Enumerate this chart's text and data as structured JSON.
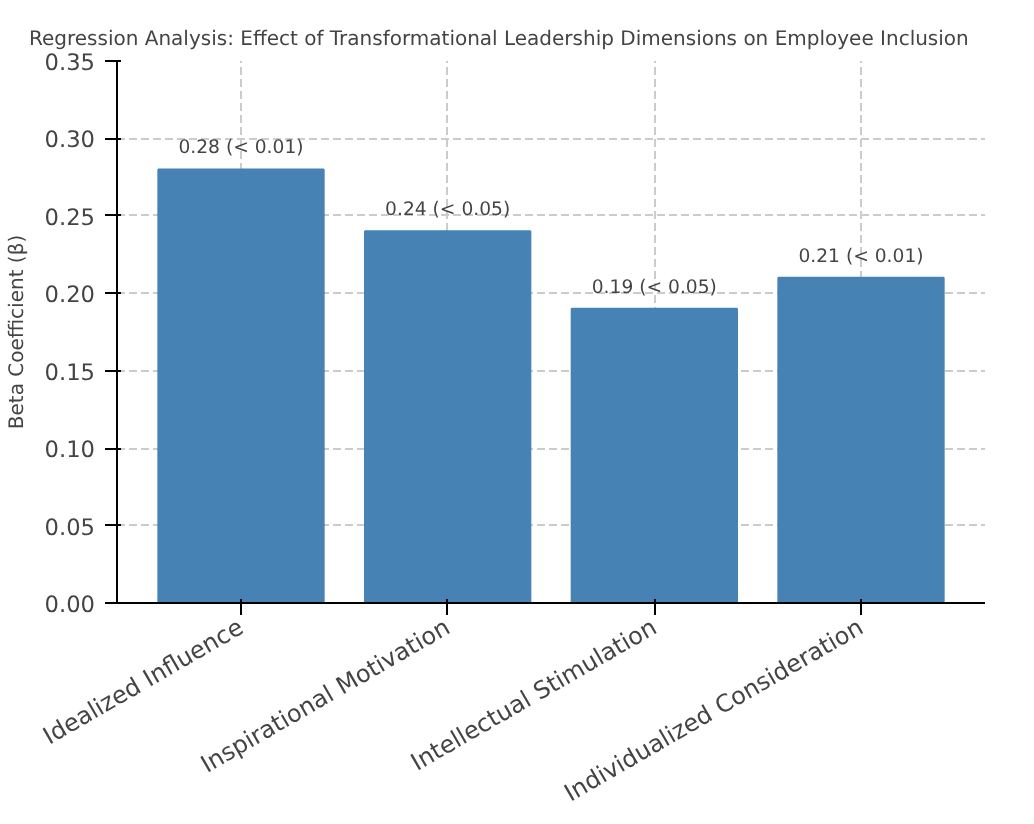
{
  "chart_data": {
    "type": "bar",
    "title": "Regression Analysis: Effect of Transformational Leadership Dimensions on Employee Inclusion",
    "ylabel": "Beta Coefficient (β)",
    "categories": [
      "Idealized Influence",
      "Inspirational Motivation",
      "Intellectual Stimulation",
      "Individualized Consideration"
    ],
    "values": [
      0.28,
      0.24,
      0.19,
      0.21
    ],
    "value_labels": [
      "0.28 (< 0.01)",
      "0.24 (< 0.05)",
      "0.19 (< 0.05)",
      "0.21 (< 0.01)"
    ],
    "color": "#4682b4",
    "ylim": [
      0,
      0.35
    ],
    "yticks": [
      {
        "value": 0,
        "label": "0.00"
      },
      {
        "value": 0.05,
        "label": "0.05"
      },
      {
        "value": 0.1,
        "label": "0.10"
      },
      {
        "value": 0.15,
        "label": "0.15"
      },
      {
        "value": 0.2,
        "label": "0.20"
      },
      {
        "value": 0.25,
        "label": "0.25"
      },
      {
        "value": 0.3,
        "label": "0.30"
      },
      {
        "value": 0.35,
        "label": "0.35"
      }
    ],
    "grid": true
  }
}
